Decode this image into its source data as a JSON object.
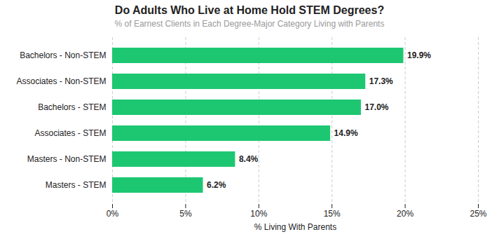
{
  "chart_data": {
    "type": "bar",
    "orientation": "horizontal",
    "title": "Do Adults Who Live at Home Hold STEM Degrees?",
    "subtitle": "% of Earnest Clients in Each Degree-Major Category Living with Parents",
    "xlabel": "% Living With Parents",
    "categories": [
      "Bachelors - Non-STEM",
      "Associates - Non-STEM",
      "Bachelors - STEM",
      "Associates - STEM",
      "Masters - Non-STEM",
      "Masters - STEM"
    ],
    "values": [
      19.9,
      17.3,
      17.0,
      14.9,
      8.4,
      6.2
    ],
    "value_labels": [
      "19.9%",
      "17.3%",
      "17.0%",
      "14.9%",
      "8.4%",
      "6.2%"
    ],
    "data_labels": true,
    "color": "#1DC772",
    "xlim": [
      0,
      25
    ],
    "xticks": [
      {
        "value": 0,
        "label": "0%"
      },
      {
        "value": 5,
        "label": "5%"
      },
      {
        "value": 10,
        "label": "10%"
      },
      {
        "value": 15,
        "label": "15%"
      },
      {
        "value": 20,
        "label": "20%"
      },
      {
        "value": 25,
        "label": "25%"
      }
    ],
    "grid": true
  }
}
